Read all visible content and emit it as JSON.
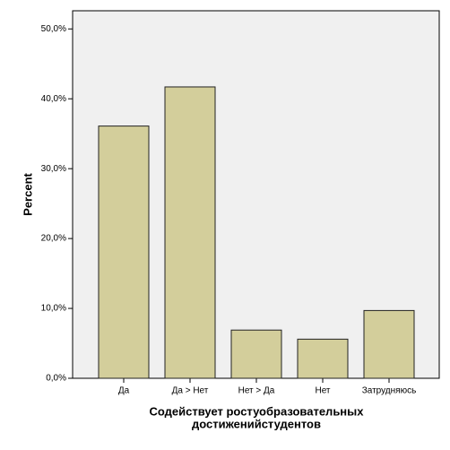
{
  "chart_data": {
    "type": "bar",
    "categories": [
      "Да",
      "Да > Нет",
      "Нет > Да",
      "Нет",
      "Затрудняюсь"
    ],
    "values": [
      36.1,
      41.7,
      6.9,
      5.6,
      9.7
    ],
    "color": "#d3ce9b",
    "ylabel": "Percent",
    "xlabel": [
      "Содействует ростуобразовательных",
      "достиженийстудентов"
    ],
    "ylim": [
      0,
      52.6
    ],
    "yticks": [
      {
        "value": 0,
        "label": "0,0%"
      },
      {
        "value": 10,
        "label": "10,0%"
      },
      {
        "value": 20,
        "label": "20,0%"
      },
      {
        "value": 30,
        "label": "30,0%"
      },
      {
        "value": 40,
        "label": "40,0%"
      },
      {
        "value": 50,
        "label": "50,0%"
      }
    ]
  }
}
